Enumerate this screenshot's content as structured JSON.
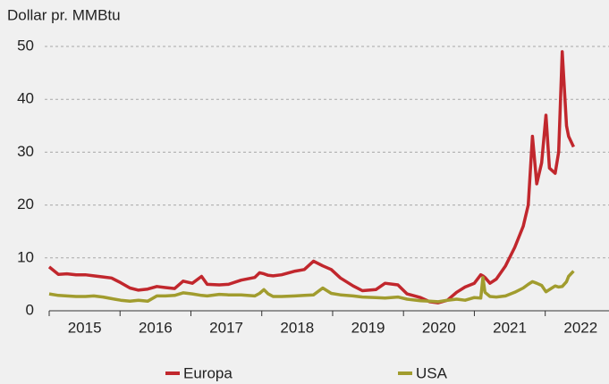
{
  "chart_data": {
    "type": "line",
    "y_label": "Dollar pr. MMBtu",
    "x": [
      2015.0,
      2015.13,
      2015.25,
      2015.38,
      2015.51,
      2015.63,
      2015.76,
      2015.88,
      2016.01,
      2016.14,
      2016.26,
      2016.39,
      2016.52,
      2016.64,
      2016.77,
      2016.89,
      2017.02,
      2017.15,
      2017.23,
      2017.4,
      2017.53,
      2017.71,
      2017.9,
      2017.97,
      2018.03,
      2018.09,
      2018.16,
      2018.28,
      2018.47,
      2018.6,
      2018.73,
      2018.86,
      2018.98,
      2019.11,
      2019.29,
      2019.42,
      2019.61,
      2019.74,
      2019.92,
      2020.05,
      2020.24,
      2020.37,
      2020.49,
      2020.62,
      2020.75,
      2020.87,
      2021.0,
      2021.09,
      2021.12,
      2021.15,
      2021.22,
      2021.31,
      2021.44,
      2021.57,
      2021.69,
      2021.76,
      2021.82,
      2021.88,
      2021.95,
      2022.01,
      2022.06,
      2022.14,
      2022.19,
      2022.24,
      2022.3,
      2022.33,
      2022.4
    ],
    "series": [
      {
        "name": "Europa",
        "color": "#c1272d",
        "values": [
          8.3,
          6.9,
          7.0,
          6.8,
          6.8,
          6.6,
          6.4,
          6.2,
          5.3,
          4.3,
          3.9,
          4.1,
          4.6,
          4.4,
          4.2,
          5.6,
          5.2,
          6.5,
          5.0,
          4.9,
          5.0,
          5.8,
          6.3,
          7.2,
          7.0,
          6.7,
          6.6,
          6.8,
          7.5,
          7.8,
          9.4,
          8.5,
          7.8,
          6.2,
          4.7,
          3.8,
          4.0,
          5.2,
          4.9,
          3.2,
          2.5,
          1.7,
          1.5,
          2.0,
          3.5,
          4.5,
          5.2,
          6.8,
          6.6,
          6.3,
          5.2,
          6.0,
          8.5,
          12,
          16,
          20,
          33,
          24,
          28,
          37,
          27,
          26,
          30,
          49,
          35,
          33,
          31
        ]
      },
      {
        "name": "USA",
        "color": "#a19c2e",
        "values": [
          3.2,
          2.9,
          2.8,
          2.7,
          2.7,
          2.8,
          2.6,
          2.3,
          2.0,
          1.8,
          2.0,
          1.8,
          2.8,
          2.8,
          2.9,
          3.4,
          3.2,
          2.9,
          2.8,
          3.1,
          3.0,
          3.0,
          2.8,
          3.3,
          4.0,
          3.2,
          2.7,
          2.7,
          2.8,
          2.9,
          3.0,
          4.3,
          3.3,
          3.0,
          2.8,
          2.6,
          2.5,
          2.4,
          2.6,
          2.2,
          1.9,
          1.8,
          1.7,
          2.0,
          2.2,
          2.0,
          2.5,
          2.4,
          6.3,
          3.5,
          2.7,
          2.6,
          2.8,
          3.5,
          4.3,
          5.0,
          5.5,
          5.2,
          4.8,
          3.6,
          4.0,
          4.7,
          4.5,
          4.6,
          5.5,
          6.5,
          7.5
        ]
      }
    ],
    "xlim": [
      2015,
      2022.9
    ],
    "xticks": [
      2015,
      2016,
      2017,
      2018,
      2019,
      2020,
      2021,
      2022
    ],
    "ylim": [
      0,
      50
    ],
    "yticks": [
      0,
      10,
      20,
      30,
      40,
      50
    ],
    "grid": true,
    "legend": "bottom"
  }
}
